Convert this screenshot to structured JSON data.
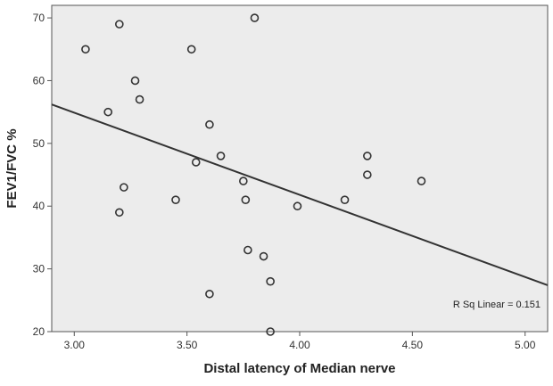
{
  "chart_data": {
    "type": "scatter",
    "title": "",
    "xlabel": "Distal latency of Median nerve",
    "ylabel": "FEV1/FVC %",
    "xlim": [
      2.9,
      5.1
    ],
    "ylim": [
      20,
      72
    ],
    "x_ticks": [
      "3.00",
      "3.50",
      "4.00",
      "4.50",
      "5.00"
    ],
    "y_ticks": [
      "20",
      "30",
      "40",
      "50",
      "60",
      "70"
    ],
    "grid": false,
    "legend": "none",
    "points": [
      {
        "x": 3.05,
        "y": 65
      },
      {
        "x": 3.2,
        "y": 69
      },
      {
        "x": 3.15,
        "y": 55
      },
      {
        "x": 3.27,
        "y": 60
      },
      {
        "x": 3.29,
        "y": 57
      },
      {
        "x": 3.22,
        "y": 43
      },
      {
        "x": 3.2,
        "y": 39
      },
      {
        "x": 3.45,
        "y": 41
      },
      {
        "x": 3.52,
        "y": 65
      },
      {
        "x": 3.54,
        "y": 47
      },
      {
        "x": 3.6,
        "y": 53
      },
      {
        "x": 3.6,
        "y": 26
      },
      {
        "x": 3.65,
        "y": 48
      },
      {
        "x": 3.75,
        "y": 44
      },
      {
        "x": 3.76,
        "y": 41
      },
      {
        "x": 3.77,
        "y": 33
      },
      {
        "x": 3.8,
        "y": 70
      },
      {
        "x": 3.84,
        "y": 32
      },
      {
        "x": 3.87,
        "y": 28
      },
      {
        "x": 3.87,
        "y": 20
      },
      {
        "x": 3.99,
        "y": 40
      },
      {
        "x": 4.2,
        "y": 41
      },
      {
        "x": 4.3,
        "y": 48
      },
      {
        "x": 4.3,
        "y": 45
      },
      {
        "x": 4.54,
        "y": 44
      }
    ],
    "fit_line": {
      "x": [
        2.9,
        5.1
      ],
      "y": [
        56.2,
        27.4
      ]
    },
    "annotation": "R Sq Linear = 0.151",
    "colors": {
      "plot_background": "#ececec",
      "outer_background": "#ffffff",
      "point_stroke": "#333333",
      "fit_line": "#333333",
      "axis": "#555555"
    }
  }
}
